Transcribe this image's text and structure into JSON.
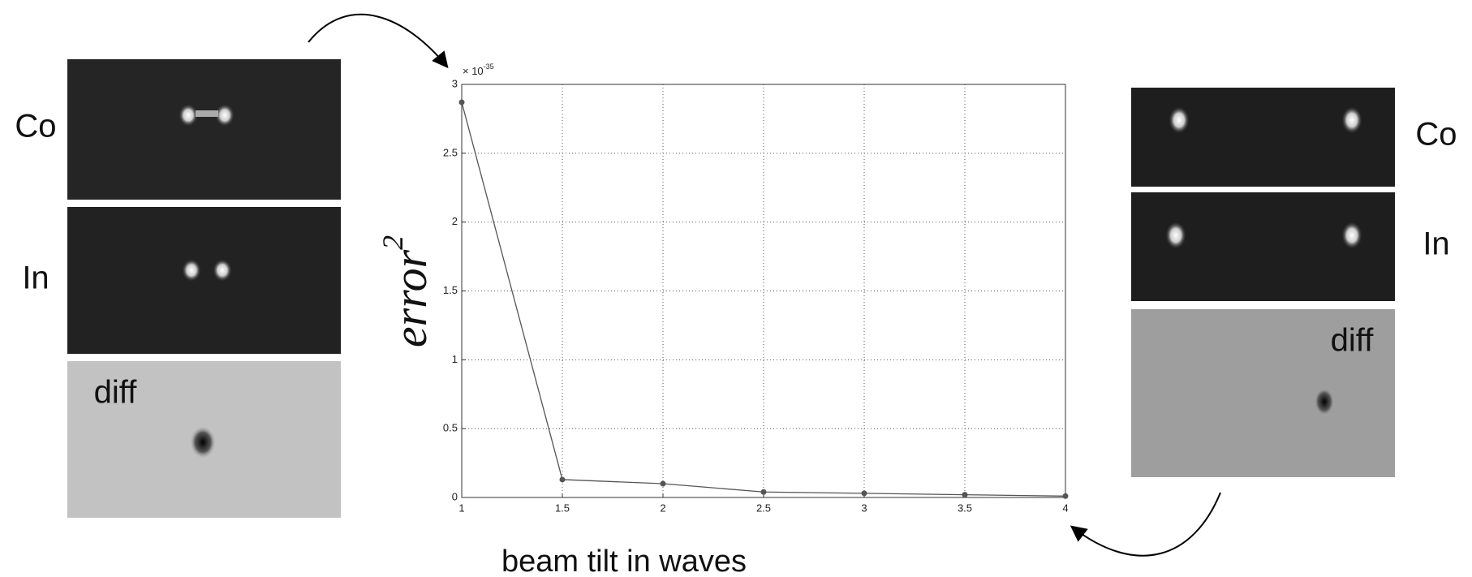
{
  "chart_data": {
    "type": "line",
    "x_label": "beam tilt in waves",
    "y_label": "error",
    "y_label_superscript": "2",
    "y_multiplier": "× 10",
    "y_multiplier_exponent": "-35",
    "x": [
      1,
      1.5,
      2,
      2.5,
      3,
      3.5,
      4
    ],
    "series": [
      {
        "name": "error",
        "color": "#555555",
        "values": [
          2.87,
          0.13,
          0.1,
          0.04,
          0.03,
          0.02,
          0.01
        ]
      }
    ],
    "xlim": [
      1,
      4
    ],
    "xticks": [
      1,
      1.5,
      2,
      2.5,
      3,
      3.5,
      4
    ],
    "ylim": [
      0,
      3
    ],
    "yticks": [
      0,
      0.5,
      1,
      1.5,
      2,
      2.5,
      3
    ],
    "grid": true
  },
  "panels": {
    "left": [
      "Co",
      "In",
      "diff"
    ],
    "right": [
      "Co",
      "In",
      "diff"
    ]
  }
}
